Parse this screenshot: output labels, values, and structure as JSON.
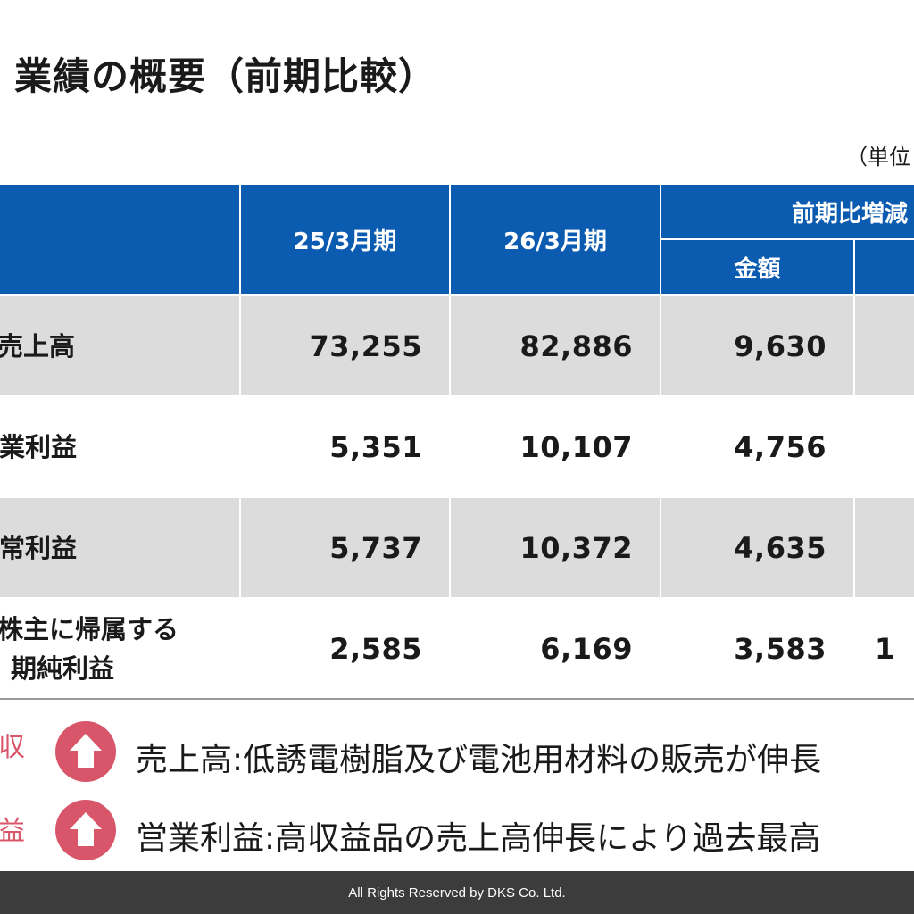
{
  "title": "業績の概要（前期比較）",
  "unit_note": "（単位",
  "table": {
    "headers": {
      "period1": "25/3月期",
      "period2": "26/3月期",
      "change_group": "前期比増減",
      "amount": "金額"
    },
    "rows": [
      {
        "label": "売上高",
        "label_line2": "",
        "period1": "73,255",
        "period2": "82,886",
        "amount": "9,630",
        "partial": ""
      },
      {
        "label": "営業利益",
        "label_line2": "",
        "period1": "5,351",
        "period2": "10,107",
        "amount": "4,756",
        "partial": ""
      },
      {
        "label": "経常利益",
        "label_line2": "",
        "period1": "5,737",
        "period2": "10,372",
        "amount": "4,635",
        "partial": ""
      },
      {
        "label": "株主に帰属する",
        "label_line2": "期純利益",
        "period1": "2,585",
        "period2": "6,169",
        "amount": "3,583",
        "partial": "1"
      }
    ]
  },
  "bullets": [
    {
      "tag": "収",
      "icon": "up-arrow-icon",
      "text": "売上高:低誘電樹脂及び電池用材料の販売が伸長"
    },
    {
      "tag": "益",
      "icon": "up-arrow-icon",
      "text": "営業利益:高収益品の売上高伸長により過去最高"
    }
  ],
  "footer": "All Rights Reserved by DKS Co. Ltd.",
  "colors": {
    "header_blue": "#0b5bb0",
    "row_gray": "#dcdcdc",
    "accent_red": "#d9566a",
    "footer_bg": "#3c3c3c"
  }
}
